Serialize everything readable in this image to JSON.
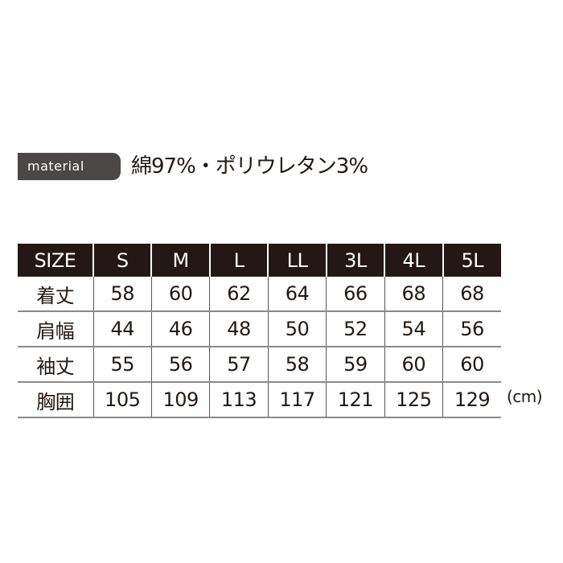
{
  "material": {
    "badge": "material",
    "value": "綿97%・ポリウレタン3%"
  },
  "table": {
    "header": [
      "SIZE",
      "S",
      "M",
      "L",
      "LL",
      "3L",
      "4L",
      "5L"
    ],
    "rows": [
      {
        "label": "着丈",
        "values": [
          "58",
          "60",
          "62",
          "64",
          "66",
          "68",
          "68"
        ]
      },
      {
        "label": "肩幅",
        "values": [
          "44",
          "46",
          "48",
          "50",
          "52",
          "54",
          "56"
        ]
      },
      {
        "label": "袖丈",
        "values": [
          "55",
          "56",
          "57",
          "58",
          "59",
          "60",
          "60"
        ]
      },
      {
        "label": "胸囲",
        "values": [
          "105",
          "109",
          "113",
          "117",
          "121",
          "125",
          "129"
        ]
      }
    ]
  },
  "unit": "(cm)",
  "colors": {
    "header_bg": "#231815",
    "badge_bg": "#4a4746"
  }
}
